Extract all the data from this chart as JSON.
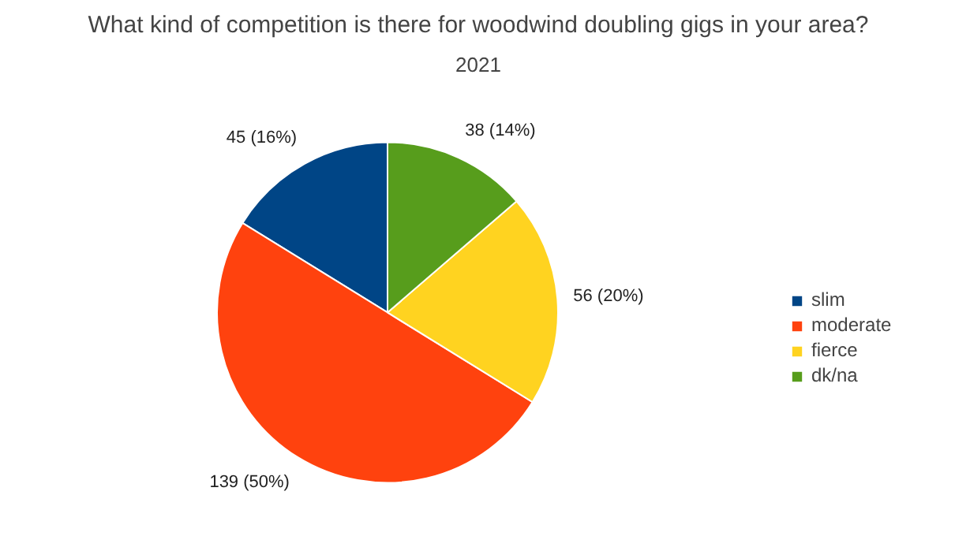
{
  "chart_data": {
    "type": "pie",
    "title": "What kind of competition is there for woodwind doubling gigs in your area?",
    "subtitle": "2021",
    "categories": [
      "slim",
      "moderate",
      "fierce",
      "dk/na"
    ],
    "values": [
      45,
      139,
      56,
      38
    ],
    "colors": [
      "#004586",
      "#ff420e",
      "#ffd320",
      "#579d1c"
    ],
    "value_labels": [
      "45 (16%)",
      "139 (50%)",
      "56 (20%)",
      "38 (14%)"
    ],
    "legend": "right"
  }
}
